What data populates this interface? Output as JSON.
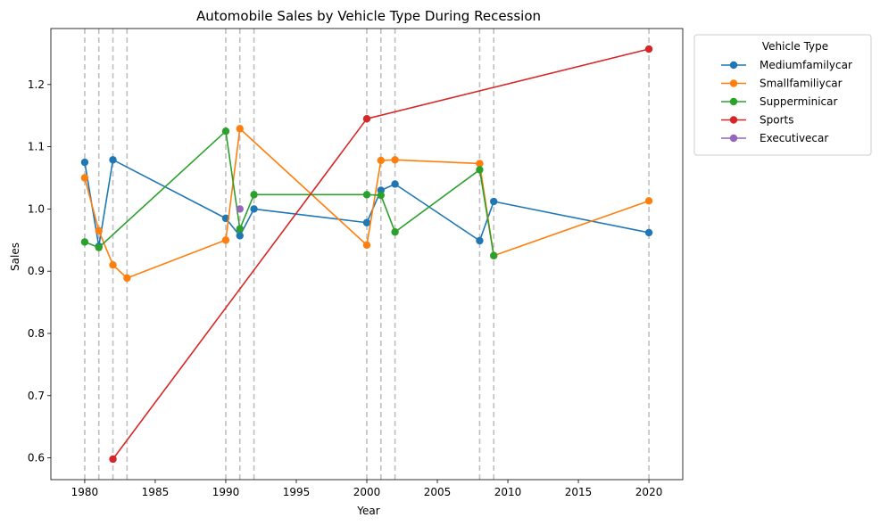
{
  "chart_data": {
    "type": "line",
    "title": "Automobile Sales by Vehicle Type During Recession",
    "xlabel": "Year",
    "ylabel": "Sales",
    "xlim": [
      1977.6,
      2022.4
    ],
    "ylim": [
      0.565,
      1.29
    ],
    "xticks": [
      1980,
      1985,
      1990,
      1995,
      2000,
      2005,
      2010,
      2015,
      2020
    ],
    "yticks": [
      0.6,
      0.7,
      0.8,
      0.9,
      1.0,
      1.1,
      1.2
    ],
    "xtick_labels": [
      "1980",
      "1985",
      "1990",
      "1995",
      "2000",
      "2005",
      "2010",
      "2015",
      "2020"
    ],
    "ytick_labels": [
      "0.6",
      "0.7",
      "0.8",
      "0.9",
      "1.0",
      "1.1",
      "1.2"
    ],
    "recession_years": [
      1980,
      1981,
      1982,
      1983,
      1990,
      1991,
      1992,
      2000,
      2001,
      2002,
      2008,
      2009,
      2020
    ],
    "legend": {
      "title": "Vehicle Type",
      "placement": "outside-upper-right"
    },
    "grid": false,
    "series": [
      {
        "name": "Mediumfamilycar",
        "color": "#1f77b4",
        "x": [
          1980,
          1981,
          1982,
          1990,
          1991,
          1992,
          2000,
          2001,
          2002,
          2008,
          2009,
          2020
        ],
        "y": [
          1.075,
          0.94,
          1.079,
          0.985,
          0.957,
          1.0,
          0.978,
          1.03,
          1.04,
          0.949,
          1.012,
          0.962
        ]
      },
      {
        "name": "Smallfamiliycar",
        "color": "#ff7f0e",
        "x": [
          1980,
          1981,
          1982,
          1983,
          1990,
          1991,
          2000,
          2001,
          2002,
          2008,
          2009,
          2020
        ],
        "y": [
          1.05,
          0.965,
          0.91,
          0.889,
          0.95,
          1.129,
          0.942,
          1.078,
          1.079,
          1.073,
          0.925,
          1.013
        ]
      },
      {
        "name": "Supperminicar",
        "color": "#2ca02c",
        "x": [
          1980,
          1981,
          1990,
          1991,
          1992,
          2000,
          2001,
          2002,
          2008,
          2009
        ],
        "y": [
          0.947,
          0.938,
          1.125,
          0.968,
          1.023,
          1.023,
          1.022,
          0.963,
          1.063,
          0.925
        ]
      },
      {
        "name": "Sports",
        "color": "#d62728",
        "x": [
          1982,
          2000,
          2020
        ],
        "y": [
          0.598,
          1.145,
          1.257
        ]
      },
      {
        "name": "Executivecar",
        "color": "#9467bd",
        "x": [
          1991
        ],
        "y": [
          1.0
        ]
      }
    ]
  }
}
